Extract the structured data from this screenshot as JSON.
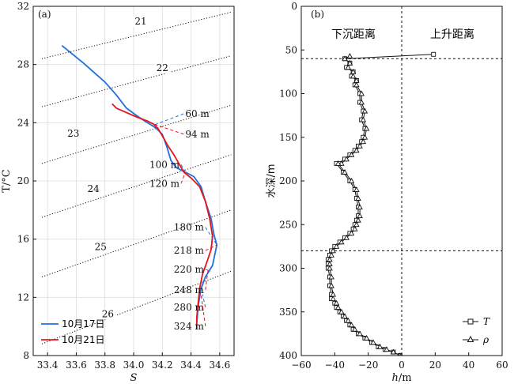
{
  "chart_data": [
    {
      "type": "line",
      "panel_label": "(a)",
      "xlabel": "S",
      "ylabel": "T/°C",
      "xlim": [
        33.3,
        34.7
      ],
      "ylim": [
        8,
        32
      ],
      "xticks": [
        "33.4",
        "33.6",
        "33.8",
        "34.0",
        "34.2",
        "34.4",
        "34.6"
      ],
      "yticks": [
        "8",
        "12",
        "16",
        "20",
        "24",
        "28",
        "32"
      ],
      "grid": true,
      "legend_position": "bottom-left",
      "isopycnals": [
        {
          "label": "21",
          "points": [
            [
              33.36,
              28.4
            ],
            [
              34.68,
              31.6
            ]
          ],
          "label_at": [
            34.05,
            30.8
          ]
        },
        {
          "label": "22",
          "points": [
            [
              33.36,
              25.1
            ],
            [
              34.68,
              28.6
            ]
          ],
          "label_at": [
            34.2,
            27.6
          ]
        },
        {
          "label": "23",
          "points": [
            [
              33.36,
              21.2
            ],
            [
              34.68,
              25.2
            ]
          ],
          "label_at": [
            33.58,
            23.1
          ]
        },
        {
          "label": "24",
          "points": [
            [
              33.36,
              17.5
            ],
            [
              34.68,
              21.8
            ]
          ],
          "label_at": [
            33.72,
            19.3
          ]
        },
        {
          "label": "25",
          "points": [
            [
              33.36,
              13.4
            ],
            [
              34.68,
              18.0
            ]
          ],
          "label_at": [
            33.77,
            15.3
          ]
        },
        {
          "label": "26",
          "points": [
            [
              33.36,
              8.8
            ],
            [
              34.68,
              13.8
            ]
          ],
          "label_at": [
            33.82,
            10.7
          ]
        }
      ],
      "series": [
        {
          "name": "10月17日",
          "color": "#1f6fe0",
          "x": [
            33.5,
            33.65,
            33.8,
            33.88,
            33.95,
            34.02,
            34.08,
            34.13,
            34.16,
            34.2,
            34.23,
            34.26,
            34.3,
            34.36,
            34.42,
            34.47,
            34.5,
            34.54,
            34.56,
            34.58,
            34.55,
            34.5,
            34.47,
            34.45,
            34.44
          ],
          "y": [
            29.3,
            28.1,
            26.8,
            25.9,
            25.0,
            24.5,
            24.1,
            23.8,
            23.6,
            23.2,
            22.4,
            21.4,
            20.9,
            20.6,
            20.3,
            19.6,
            18.6,
            17.4,
            16.3,
            15.6,
            14.2,
            13.4,
            12.6,
            11.4,
            10.2
          ]
        },
        {
          "name": "10月21日",
          "color": "#e8141b",
          "x": [
            33.85,
            33.88,
            33.95,
            34.02,
            34.1,
            34.14,
            34.17,
            34.2,
            34.24,
            34.28,
            34.31,
            34.35,
            34.4,
            34.46,
            34.5,
            34.53,
            34.55,
            34.54,
            34.51,
            34.48,
            34.46,
            34.45,
            34.44,
            34.44
          ],
          "y": [
            25.3,
            25.0,
            24.7,
            24.4,
            24.1,
            23.9,
            23.6,
            23.1,
            22.4,
            21.8,
            21.3,
            20.6,
            20.2,
            19.6,
            18.6,
            17.4,
            16.2,
            15.3,
            14.4,
            13.6,
            12.6,
            11.6,
            10.6,
            9.8
          ]
        }
      ],
      "annotations": [
        {
          "text": "60 m",
          "color": "#1f6fe0",
          "text_at": [
            34.36,
            24.4
          ],
          "from": [
            34.36,
            24.4
          ],
          "to": [
            34.13,
            23.8
          ]
        },
        {
          "text": "94 m",
          "color": "#e8141b",
          "text_at": [
            34.36,
            23.0
          ],
          "from": [
            34.36,
            23.0
          ],
          "to": [
            34.14,
            23.9
          ]
        },
        {
          "text": "100 m",
          "color": "#1f6fe0",
          "text_at": [
            34.11,
            20.9
          ],
          "from": [
            34.11,
            20.9
          ],
          "to": [
            34.36,
            20.6
          ]
        },
        {
          "text": "120 m",
          "color": "#e8141b",
          "text_at": [
            34.11,
            19.6
          ],
          "from": [
            34.11,
            19.6
          ],
          "to": [
            34.36,
            20.6
          ]
        },
        {
          "text": "180 m",
          "color": "#1f6fe0",
          "text_at": [
            34.28,
            16.6
          ],
          "from": [
            34.28,
            16.6
          ],
          "to": [
            34.58,
            15.6
          ]
        },
        {
          "text": "218 m",
          "color": "#e8141b",
          "text_at": [
            34.28,
            15.0
          ],
          "from": [
            34.28,
            15.0
          ],
          "to": [
            34.58,
            15.6
          ]
        },
        {
          "text": "220 m",
          "color": "#1f6fe0",
          "text_at": [
            34.28,
            13.7
          ],
          "from": [
            34.28,
            13.7
          ],
          "to": [
            34.54,
            13.8
          ]
        },
        {
          "text": "248 m",
          "color": "#e8141b",
          "text_at": [
            34.28,
            12.3
          ],
          "from": [
            34.28,
            12.3
          ],
          "to": [
            34.52,
            14.0
          ]
        },
        {
          "text": "280 m",
          "color": "#1f6fe0",
          "text_at": [
            34.28,
            11.1
          ],
          "from": [
            34.28,
            11.1
          ],
          "to": [
            34.48,
            12.2
          ]
        },
        {
          "text": "324 m",
          "color": "#e8141b",
          "text_at": [
            34.28,
            9.8
          ],
          "from": [
            34.28,
            9.8
          ],
          "to": [
            34.47,
            12.2
          ]
        }
      ]
    },
    {
      "type": "line",
      "panel_label": "(b)",
      "xlabel": "h/m",
      "ylabel": "水深/m",
      "xlim": [
        -60,
        60
      ],
      "ylim": [
        0,
        400
      ],
      "y_inverted": true,
      "xticks": [
        "−60",
        "−40",
        "−20",
        "0",
        "20",
        "40",
        "60"
      ],
      "yticks": [
        "0",
        "50",
        "100",
        "150",
        "200",
        "250",
        "300",
        "350",
        "400"
      ],
      "grid": false,
      "legend_position": "bottom-right",
      "region_labels": {
        "left": "下沉距离",
        "right": "上升距离"
      },
      "reference_lines": {
        "vertical_x": 0,
        "horizontal_y": [
          60,
          280
        ]
      },
      "series": [
        {
          "name": "T",
          "marker": "square",
          "x": [
            19,
            -34,
            -31,
            -33,
            -29,
            -30,
            -27,
            -28,
            -25,
            -25,
            -23,
            -24,
            -22,
            -23,
            -24,
            -26,
            -28,
            -31,
            -34,
            -37,
            -39,
            -35,
            -31,
            -28,
            -27,
            -26,
            -26,
            -27,
            -28,
            -29,
            -31,
            -34,
            -37,
            -40,
            -42,
            -43,
            -44,
            -44,
            -44,
            -43,
            -43,
            -42,
            -42,
            -40,
            -39,
            -37,
            -35,
            -33,
            -31,
            -29,
            -26,
            -22,
            -18,
            -14,
            -10,
            -5,
            -1
          ],
          "y": [
            55,
            60,
            65,
            70,
            75,
            80,
            85,
            90,
            100,
            110,
            120,
            130,
            140,
            150,
            155,
            160,
            165,
            170,
            175,
            180,
            180,
            190,
            200,
            210,
            220,
            230,
            240,
            245,
            250,
            255,
            260,
            265,
            270,
            275,
            280,
            285,
            290,
            295,
            300,
            310,
            320,
            330,
            335,
            340,
            345,
            350,
            355,
            360,
            365,
            370,
            375,
            380,
            385,
            390,
            393,
            396,
            400
          ]
        },
        {
          "name": "ρ",
          "marker": "triangle",
          "x": [
            -31,
            -34,
            -31,
            -32,
            -29,
            -29,
            -27,
            -27,
            -24,
            -24,
            -22,
            -23,
            -21,
            -22,
            -23,
            -25,
            -27,
            -30,
            -33,
            -36,
            -38,
            -34,
            -30,
            -27,
            -26,
            -25,
            -25,
            -26,
            -27,
            -28,
            -30,
            -33,
            -36,
            -39,
            -41,
            -42,
            -43,
            -43,
            -43,
            -42,
            -42,
            -41,
            -41,
            -39,
            -38,
            -36,
            -34,
            -32,
            -30,
            -28,
            -25,
            -21,
            -17,
            -13,
            -9,
            -5,
            -1
          ],
          "y": [
            57,
            60,
            65,
            70,
            75,
            80,
            85,
            90,
            100,
            110,
            120,
            130,
            140,
            150,
            155,
            160,
            165,
            170,
            175,
            180,
            180,
            190,
            200,
            210,
            220,
            230,
            240,
            245,
            250,
            255,
            260,
            265,
            270,
            275,
            280,
            285,
            290,
            295,
            300,
            310,
            320,
            330,
            335,
            340,
            345,
            350,
            355,
            360,
            365,
            370,
            375,
            380,
            385,
            390,
            393,
            396,
            400
          ]
        }
      ]
    }
  ]
}
